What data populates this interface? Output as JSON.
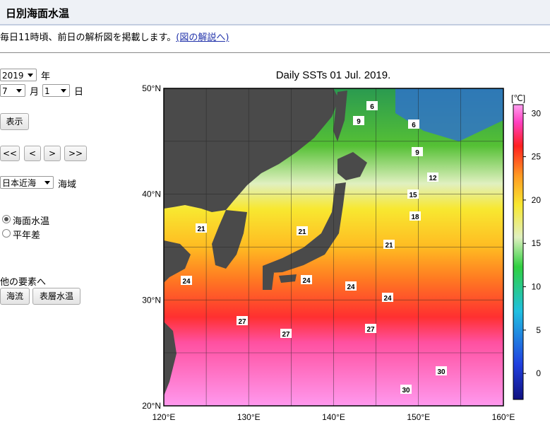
{
  "header": {
    "title": "日別海面水温"
  },
  "description": {
    "text": "毎日11時頃、前日の解析図を掲載します。",
    "link": "(図の解説へ)"
  },
  "controls": {
    "year": "2019",
    "year_unit": "年",
    "month": "7",
    "month_unit": "月",
    "day": "1",
    "day_unit": "日",
    "show_button": "表示",
    "nav": [
      "<<",
      "<",
      ">",
      ">>"
    ],
    "region": "日本近海",
    "region_unit": "海域",
    "modes": [
      "海面水温",
      "平年差"
    ],
    "other_heading": "他の要素へ",
    "other_buttons": [
      "海流",
      "表層水温"
    ]
  },
  "map": {
    "title": "Daily SSTs 01 Jul. 2019.",
    "lat_labels": [
      "50°N",
      "40°N",
      "30°N",
      "20°N"
    ],
    "lon_labels": [
      "120°E",
      "130°E",
      "140°E",
      "150°E",
      "160°E"
    ],
    "colorbar_unit": "[℃]",
    "colorbar_lim": [
      -3,
      31
    ],
    "colorbar_ticks": [
      0,
      5,
      10,
      15,
      20,
      25,
      30
    ],
    "contour_labels": [
      6,
      9,
      6,
      9,
      12,
      15,
      18,
      21,
      21,
      21,
      24,
      24,
      24,
      24,
      27,
      27,
      27,
      30,
      30
    ]
  }
}
